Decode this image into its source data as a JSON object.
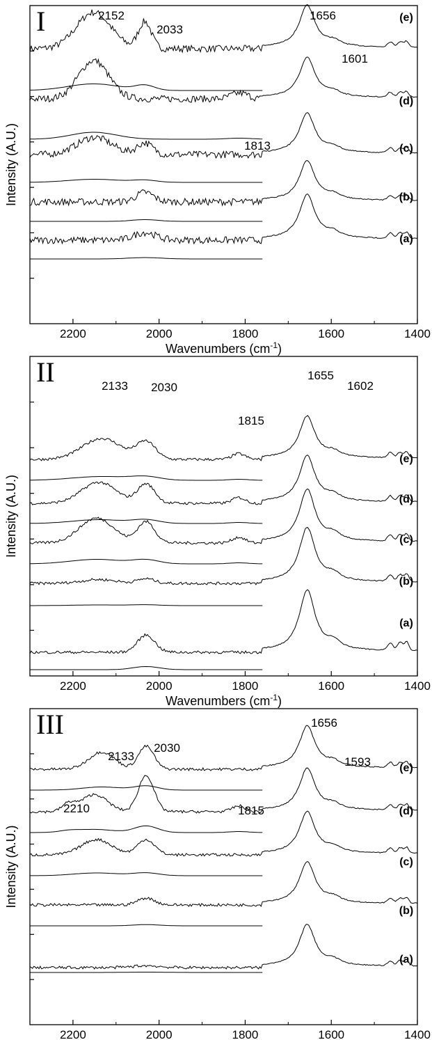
{
  "chart_data": [
    {
      "type": "line",
      "panel_label": "I",
      "xlabel": "Wavenumbers (cm",
      "xlabel_sup": "-1",
      "xlabel_close": ")",
      "ylabel": "Intensity (A.U.)",
      "xlim": [
        2300,
        1400
      ],
      "x_ticks": [
        2200,
        2000,
        1800,
        1600,
        1400
      ],
      "x_tick_labels": [
        "2200",
        "2000",
        "1800",
        "1600",
        "1400"
      ],
      "curve_labels": [
        "(e)",
        "(d)",
        "(c)",
        "(b)",
        "(a)"
      ],
      "peak_labels": [
        {
          "text": "2152",
          "x": 2152
        },
        {
          "text": "2033",
          "x": 2033
        },
        {
          "text": "1656",
          "x": 1656
        },
        {
          "text": "1601",
          "x": 1601
        },
        {
          "text": "1813",
          "x": 1813
        }
      ],
      "series": [
        {
          "curve": "(e)",
          "peak_1656_height": 1.0,
          "ir_peaks": [
            [
              2152,
              0.95,
              40
            ],
            [
              2033,
              0.7,
              15
            ]
          ]
        },
        {
          "curve": "(d)",
          "peak_1656_height": 0.95,
          "ir_peaks": [
            [
              2152,
              1.0,
              35
            ],
            [
              1813,
              0.15,
              20
            ]
          ]
        },
        {
          "curve": "(c)",
          "peak_1656_height": 0.95,
          "ir_peaks": [
            [
              2150,
              0.45,
              40
            ],
            [
              2033,
              0.3,
              18
            ]
          ]
        },
        {
          "curve": "(b)",
          "peak_1656_height": 0.95,
          "ir_peaks": [
            [
              2033,
              0.25,
              20
            ]
          ]
        },
        {
          "curve": "(a)",
          "peak_1656_height": 1.05,
          "ir_peaks": [
            [
              2033,
              0.2,
              25
            ]
          ]
        }
      ]
    },
    {
      "type": "line",
      "panel_label": "II",
      "xlabel": "Wavenumbers (cm",
      "xlabel_sup": "-1",
      "xlabel_close": ")",
      "ylabel": "Intensity (A.U.)",
      "xlim": [
        2300,
        1400
      ],
      "x_ticks": [
        2200,
        2000,
        1800,
        1600,
        1400
      ],
      "x_tick_labels": [
        "2200",
        "2000",
        "1800",
        "1600",
        "1400"
      ],
      "curve_labels": [
        "(e)",
        "(d)",
        "(c)",
        "(b)",
        "(a)"
      ],
      "peak_labels": [
        {
          "text": "2133",
          "x": 2133
        },
        {
          "text": "2030",
          "x": 2030
        },
        {
          "text": "1655",
          "x": 1655
        },
        {
          "text": "1602",
          "x": 1602
        },
        {
          "text": "1815",
          "x": 1815
        }
      ],
      "series": [
        {
          "curve": "(e)",
          "peak_1656_height": 1.0,
          "ir_peaks": [
            [
              2133,
              0.55,
              45
            ],
            [
              2030,
              0.45,
              22
            ],
            [
              1815,
              0.15,
              15
            ]
          ]
        },
        {
          "curve": "(d)",
          "peak_1656_height": 1.1,
          "ir_peaks": [
            [
              2140,
              0.55,
              40
            ],
            [
              2030,
              0.5,
              20
            ],
            [
              1815,
              0.15,
              15
            ]
          ]
        },
        {
          "curve": "(c)",
          "peak_1656_height": 1.25,
          "ir_peaks": [
            [
              2145,
              0.65,
              40
            ],
            [
              2030,
              0.55,
              20
            ],
            [
              1815,
              0.15,
              15
            ]
          ]
        },
        {
          "curve": "(b)",
          "peak_1656_height": 1.3,
          "ir_peaks": [
            [
              2140,
              0.1,
              40
            ],
            [
              2030,
              0.12,
              20
            ]
          ]
        },
        {
          "curve": "(a)",
          "peak_1656_height": 1.45,
          "ir_peaks": [
            [
              2030,
              0.45,
              20
            ]
          ]
        }
      ]
    },
    {
      "type": "line",
      "panel_label": "III",
      "xlabel": "Wavenumbers (cm",
      "xlabel_sup": "-1",
      "xlabel_close": ")",
      "ylabel": "Intensity (A.U.)",
      "xlim": [
        2300,
        1400
      ],
      "x_ticks": [
        2200,
        2000,
        1800,
        1600,
        1400
      ],
      "x_tick_labels": [
        "2200",
        "2000",
        "1800",
        "1600",
        "1400"
      ],
      "curve_labels": [
        "(e)",
        "(d)",
        "(c)",
        "(b)",
        "(a)"
      ],
      "peak_labels": [
        {
          "text": "2133",
          "x": 2133
        },
        {
          "text": "2030",
          "x": 2030
        },
        {
          "text": "1656",
          "x": 1656
        },
        {
          "text": "1593",
          "x": 1593
        },
        {
          "text": "2210",
          "x": 2210
        },
        {
          "text": "1815",
          "x": 1815
        }
      ],
      "series": [
        {
          "curve": "(e)",
          "peak_1656_height": 1.0,
          "ir_peaks": [
            [
              2133,
              0.45,
              30
            ],
            [
              2030,
              0.6,
              18
            ]
          ]
        },
        {
          "curve": "(d)",
          "peak_1656_height": 1.0,
          "ir_peaks": [
            [
              2210,
              0.2,
              15
            ],
            [
              2150,
              0.45,
              30
            ],
            [
              2030,
              0.95,
              18
            ],
            [
              1815,
              0.15,
              15
            ]
          ]
        },
        {
          "curve": "(c)",
          "peak_1656_height": 1.0,
          "ir_peaks": [
            [
              2145,
              0.4,
              35
            ],
            [
              2030,
              0.4,
              20
            ]
          ]
        },
        {
          "curve": "(b)",
          "peak_1656_height": 1.0,
          "ir_peaks": [
            [
              2030,
              0.18,
              20
            ]
          ]
        },
        {
          "curve": "(a)",
          "peak_1656_height": 1.0,
          "ir_peaks": [
            [
              2030,
              0.05,
              30
            ]
          ]
        }
      ]
    }
  ]
}
